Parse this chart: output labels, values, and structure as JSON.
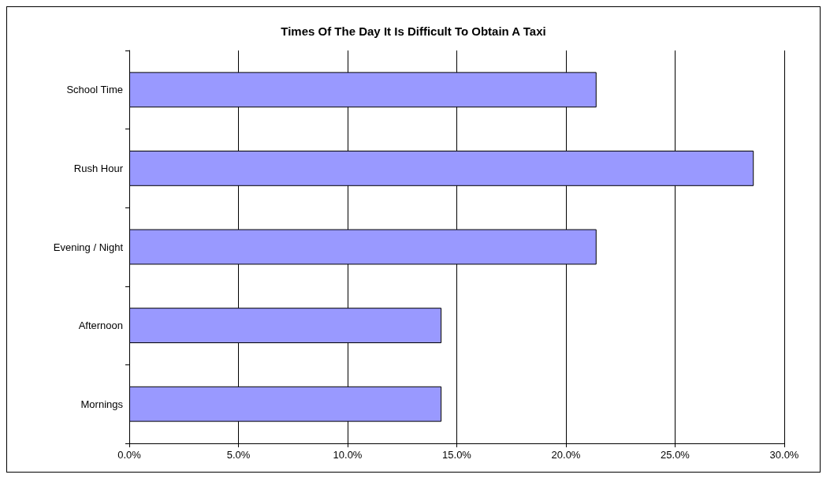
{
  "chart_data": {
    "type": "bar",
    "orientation": "horizontal",
    "title": "Times Of The Day It Is Difficult To Obtain A Taxi",
    "categories": [
      "School Time",
      "Rush Hour",
      "Evening / Night",
      "Afternoon",
      "Mornings"
    ],
    "values": [
      21.4,
      28.6,
      21.4,
      14.3,
      14.3
    ],
    "color": "#9999ff",
    "xlim": [
      0,
      30
    ],
    "xticks": [
      {
        "value": 0,
        "label": "0.0%"
      },
      {
        "value": 5,
        "label": "5.0%"
      },
      {
        "value": 10,
        "label": "10.0%"
      },
      {
        "value": 15,
        "label": "15.0%"
      },
      {
        "value": 20,
        "label": "20.0%"
      },
      {
        "value": 25,
        "label": "25.0%"
      },
      {
        "value": 30,
        "label": "30.0%"
      }
    ],
    "grid": "x"
  }
}
